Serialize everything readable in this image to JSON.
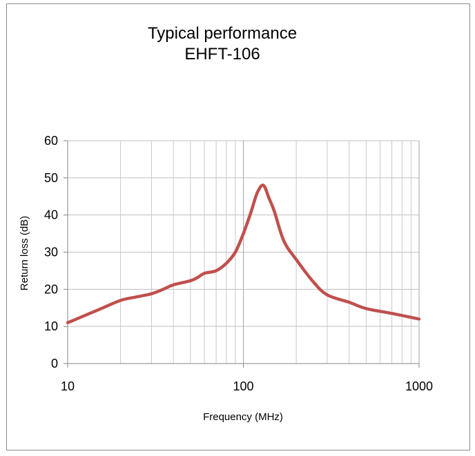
{
  "chart_data": {
    "type": "line",
    "title_lines": [
      "Typical performance",
      "EHFT-106"
    ],
    "xlabel": "Frequency (MHz)",
    "ylabel": "Return loss (dB)",
    "x_scale": "log",
    "xlim": [
      10,
      1000
    ],
    "ylim": [
      0,
      60
    ],
    "x_ticks": [
      "10",
      "100",
      "1000"
    ],
    "y_ticks": [
      "0",
      "10",
      "20",
      "30",
      "40",
      "50",
      "60"
    ],
    "grid": true,
    "legend": "none",
    "series": [
      {
        "color": "#c0504d",
        "x": [
          10,
          15,
          20,
          25,
          30,
          35,
          40,
          50,
          55,
          60,
          70,
          80,
          90,
          100,
          110,
          120,
          130,
          140,
          150,
          170,
          200,
          250,
          300,
          400,
          500,
          700,
          1000
        ],
        "y": [
          11,
          14.5,
          17,
          18,
          18.8,
          20,
          21.2,
          22.3,
          23.2,
          24.3,
          25,
          27,
          30,
          35,
          40.5,
          46,
          48,
          44.5,
          41,
          33,
          28,
          22,
          18.5,
          16.5,
          14.8,
          13.5,
          12
        ]
      }
    ]
  }
}
